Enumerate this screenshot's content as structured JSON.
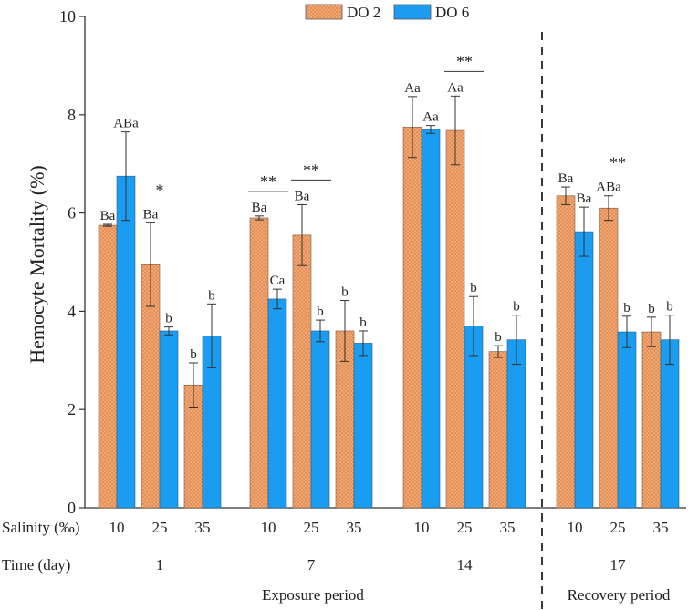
{
  "chart_data": {
    "type": "bar",
    "ylabel": "Hemocyte Mortality (%)",
    "ylim": [
      0,
      10
    ],
    "yticks": [
      "0",
      "2",
      "4",
      "6",
      "8",
      "10"
    ],
    "legend": {
      "position": "top-center",
      "entries": [
        "DO 2",
        "DO 6"
      ]
    },
    "series": [
      {
        "name": "DO 2",
        "color": "#f2a56e",
        "pattern": "dotted"
      },
      {
        "name": "DO 6",
        "color": "#1a9cf0",
        "pattern": "solid"
      }
    ],
    "row_labels": {
      "salinity": "Salinity (‰)",
      "time": "Time (day)"
    },
    "period_labels": {
      "exposure": "Exposure period",
      "recovery": "Recovery period"
    },
    "groups": [
      {
        "time": "1",
        "salinities": [
          "10",
          "25",
          "35"
        ],
        "do2": [
          5.75,
          4.95,
          2.5
        ],
        "do2_err": [
          0.02,
          0.85,
          0.45
        ],
        "do6": [
          6.75,
          3.6,
          3.5
        ],
        "do6_err": [
          0.9,
          0.08,
          0.65
        ],
        "do2_labels": [
          "Ba",
          "Ba",
          "b"
        ],
        "do6_labels": [
          "ABa",
          "b",
          "b"
        ],
        "significance": [
          {
            "index": 1,
            "mark": "*",
            "line": false
          }
        ]
      },
      {
        "time": "7",
        "salinities": [
          "10",
          "25",
          "35"
        ],
        "do2": [
          5.9,
          5.55,
          3.6
        ],
        "do2_err": [
          0.04,
          0.62,
          0.62
        ],
        "do6": [
          4.25,
          3.6,
          3.35
        ],
        "do6_err": [
          0.2,
          0.22,
          0.25
        ],
        "do2_labels": [
          "Ba",
          "Ba",
          "b"
        ],
        "do6_labels": [
          "Ca",
          "b",
          "b"
        ],
        "significance": [
          {
            "index": 0,
            "mark": "**",
            "line": true
          },
          {
            "index": 1,
            "mark": "**",
            "line": true
          }
        ]
      },
      {
        "time": "14",
        "salinities": [
          "10",
          "25",
          "35"
        ],
        "do2": [
          7.75,
          7.68,
          3.18
        ],
        "do2_err": [
          0.62,
          0.7,
          0.12
        ],
        "do6": [
          7.7,
          3.7,
          3.42
        ],
        "do6_err": [
          0.08,
          0.6,
          0.5
        ],
        "do2_labels": [
          "Aa",
          "Aa",
          "b"
        ],
        "do6_labels": [
          "Aa",
          "b",
          "b"
        ],
        "significance": [
          {
            "index": 1,
            "mark": "**",
            "line": true
          }
        ]
      },
      {
        "time": "17",
        "salinities": [
          "10",
          "25",
          "35"
        ],
        "do2": [
          6.35,
          6.1,
          3.58
        ],
        "do2_err": [
          0.18,
          0.25,
          0.3
        ],
        "do6": [
          5.62,
          3.58,
          3.42
        ],
        "do6_err": [
          0.5,
          0.32,
          0.5
        ],
        "do2_labels": [
          "Ba",
          "ABa",
          "b"
        ],
        "do6_labels": [
          "Ba",
          "b",
          "b"
        ],
        "significance": [
          {
            "index": 1,
            "mark": "**",
            "line": false
          }
        ]
      }
    ]
  }
}
